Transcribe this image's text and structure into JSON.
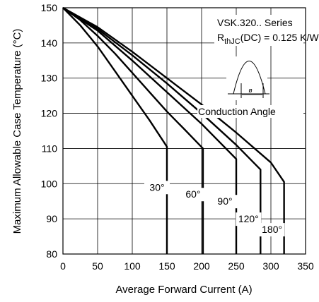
{
  "chart_data": {
    "type": "line",
    "xlabel": "Average Forward Current (A)",
    "ylabel": "Maximum Allowable Case Temperature (°C)",
    "xlim": [
      0,
      350
    ],
    "ylim": [
      80,
      150
    ],
    "x_ticks": [
      "0",
      "50",
      "100",
      "150",
      "200",
      "250",
      "300",
      "350"
    ],
    "y_ticks": [
      "80",
      "90",
      "100",
      "110",
      "120",
      "130",
      "140",
      "150"
    ],
    "grid": true,
    "annotation": {
      "device": "VSK.320.. Series",
      "r_main": "R",
      "r_sub": "thJC",
      "r_rest": "(DC) = 0.125 K/W",
      "inset_symbol": "ø",
      "inset_label": "Conduction Angle"
    },
    "series": [
      {
        "name": "30°",
        "x": [
          0,
          25,
          50,
          75,
          100,
          125,
          150,
          150
        ],
        "y": [
          150,
          145,
          139,
          132,
          125,
          118,
          110.5,
          80
        ]
      },
      {
        "name": "60°",
        "x": [
          0,
          25,
          50,
          75,
          100,
          125,
          150,
          175,
          202,
          202
        ],
        "y": [
          150,
          146.5,
          142,
          137,
          131.5,
          126,
          120.5,
          115.5,
          110,
          80
        ]
      },
      {
        "name": "90°",
        "x": [
          0,
          50,
          100,
          150,
          200,
          225,
          250,
          250
        ],
        "y": [
          150,
          143.5,
          135,
          126,
          117,
          112,
          107,
          80
        ]
      },
      {
        "name": "120°",
        "x": [
          0,
          50,
          100,
          150,
          200,
          250,
          285,
          285
        ],
        "y": [
          150,
          144,
          136.5,
          128.5,
          120,
          111,
          104,
          80
        ]
      },
      {
        "name": "180°",
        "x": [
          0,
          50,
          100,
          150,
          200,
          250,
          300,
          319,
          319
        ],
        "y": [
          150,
          144.5,
          137.5,
          130,
          122.5,
          114.5,
          106,
          100.5,
          80
        ]
      }
    ]
  }
}
